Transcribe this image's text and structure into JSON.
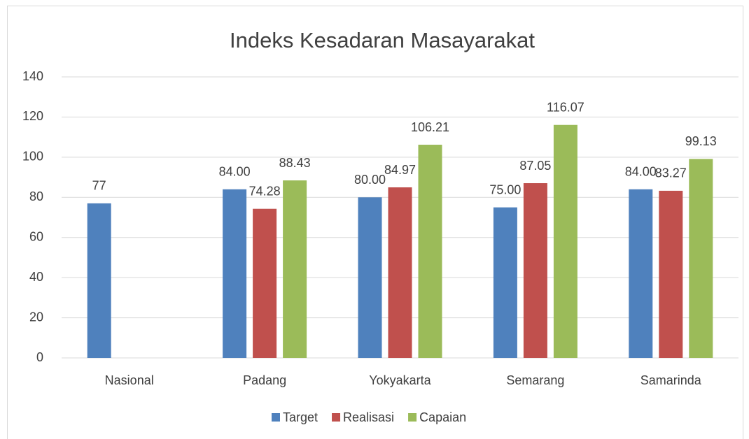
{
  "chart_data": {
    "type": "bar",
    "title": "Indeks Kesadaran Masayarakat",
    "categories": [
      "Nasional",
      "Padang",
      "Yokyakarta",
      "Semarang",
      "Samarinda"
    ],
    "series": [
      {
        "name": "Target",
        "color": "#4f81bd",
        "values": [
          77,
          84,
          80,
          75,
          84
        ],
        "value_labels": [
          "77",
          "84.00",
          "80.00",
          "75.00",
          "84.00"
        ]
      },
      {
        "name": "Realisasi",
        "color": "#c0504d",
        "values": [
          null,
          74.28,
          84.97,
          87.05,
          83.27
        ],
        "value_labels": [
          null,
          "74.28",
          "84.97",
          "87.05",
          "83.27"
        ]
      },
      {
        "name": "Capaian",
        "color": "#9bbb59",
        "values": [
          null,
          88.43,
          106.21,
          116.07,
          99.13
        ],
        "value_labels": [
          null,
          "88.43",
          "106.21",
          "116.07",
          "99.13"
        ]
      }
    ],
    "ylim": [
      0,
      140
    ],
    "yticks": [
      0,
      20,
      40,
      60,
      80,
      100,
      120,
      140
    ],
    "grid": true,
    "legend": "bottom"
  }
}
